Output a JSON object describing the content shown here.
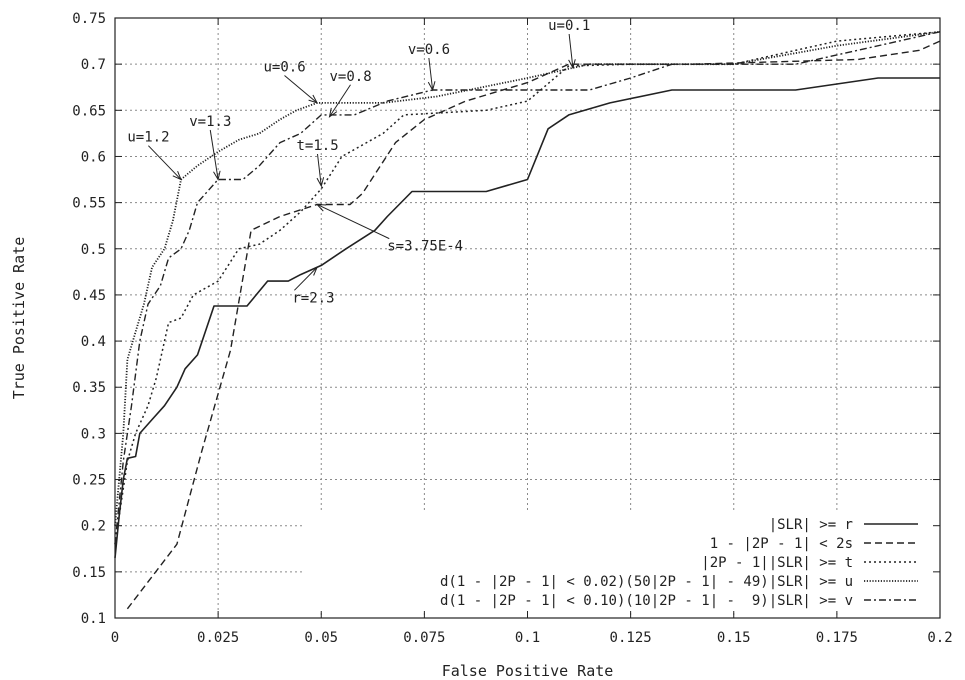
{
  "chart_data": {
    "type": "line",
    "xlabel": "False Positive Rate",
    "ylabel": "True Positive Rate",
    "xlim": [
      0,
      0.2
    ],
    "ylim": [
      0.1,
      0.75
    ],
    "grid": true,
    "x_ticks": [
      "0",
      "0.025",
      "0.05",
      "0.075",
      "0.1",
      "0.125",
      "0.15",
      "0.175",
      "0.2"
    ],
    "y_ticks": [
      "0.1",
      "0.15",
      "0.2",
      "0.25",
      "0.3",
      "0.35",
      "0.4",
      "0.45",
      "0.5",
      "0.55",
      "0.6",
      "0.65",
      "0.7",
      "0.75"
    ],
    "legend_position": "bottom-right",
    "series": [
      {
        "name": "|SLR| >= r",
        "style": "solid",
        "points": [
          [
            0,
            0.165
          ],
          [
            0.001,
            0.21
          ],
          [
            0.002,
            0.25
          ],
          [
            0.003,
            0.273
          ],
          [
            0.005,
            0.275
          ],
          [
            0.006,
            0.3
          ],
          [
            0.009,
            0.315
          ],
          [
            0.012,
            0.33
          ],
          [
            0.015,
            0.35
          ],
          [
            0.017,
            0.37
          ],
          [
            0.02,
            0.385
          ],
          [
            0.024,
            0.438
          ],
          [
            0.032,
            0.438
          ],
          [
            0.037,
            0.465
          ],
          [
            0.042,
            0.465
          ],
          [
            0.045,
            0.472
          ],
          [
            0.05,
            0.482
          ],
          [
            0.056,
            0.5
          ],
          [
            0.063,
            0.52
          ],
          [
            0.066,
            0.535
          ],
          [
            0.072,
            0.562
          ],
          [
            0.09,
            0.562
          ],
          [
            0.1,
            0.575
          ],
          [
            0.105,
            0.63
          ],
          [
            0.11,
            0.645
          ],
          [
            0.12,
            0.658
          ],
          [
            0.135,
            0.672
          ],
          [
            0.165,
            0.672
          ],
          [
            0.185,
            0.685
          ],
          [
            0.2,
            0.685
          ]
        ]
      },
      {
        "name": "1 - |2P - 1| < 2s",
        "style": "dashed",
        "points": [
          [
            0.003,
            0.11
          ],
          [
            0.015,
            0.18
          ],
          [
            0.021,
            0.28
          ],
          [
            0.028,
            0.39
          ],
          [
            0.033,
            0.52
          ],
          [
            0.04,
            0.535
          ],
          [
            0.049,
            0.548
          ],
          [
            0.057,
            0.548
          ],
          [
            0.06,
            0.56
          ],
          [
            0.068,
            0.615
          ],
          [
            0.075,
            0.64
          ],
          [
            0.085,
            0.66
          ],
          [
            0.1,
            0.68
          ],
          [
            0.11,
            0.7
          ],
          [
            0.125,
            0.7
          ],
          [
            0.14,
            0.7
          ],
          [
            0.18,
            0.705
          ],
          [
            0.195,
            0.715
          ],
          [
            0.2,
            0.725
          ]
        ]
      },
      {
        "name": "|2P - 1||SLR| >= t",
        "style": "dotted",
        "points": [
          [
            0,
            0.18
          ],
          [
            0.003,
            0.27
          ],
          [
            0.005,
            0.3
          ],
          [
            0.008,
            0.33
          ],
          [
            0.01,
            0.36
          ],
          [
            0.013,
            0.42
          ],
          [
            0.016,
            0.425
          ],
          [
            0.019,
            0.45
          ],
          [
            0.025,
            0.465
          ],
          [
            0.03,
            0.5
          ],
          [
            0.035,
            0.505
          ],
          [
            0.04,
            0.52
          ],
          [
            0.045,
            0.54
          ],
          [
            0.05,
            0.565
          ],
          [
            0.055,
            0.6
          ],
          [
            0.065,
            0.625
          ],
          [
            0.07,
            0.645
          ],
          [
            0.09,
            0.65
          ],
          [
            0.1,
            0.66
          ],
          [
            0.11,
            0.698
          ],
          [
            0.125,
            0.7
          ],
          [
            0.15,
            0.7
          ],
          [
            0.175,
            0.725
          ],
          [
            0.2,
            0.735
          ]
        ]
      },
      {
        "name": "d(1 - |2P - 1| < 0.02)(50|2P - 1| - 49)|SLR| >= u",
        "style": "fine-dotted",
        "points": [
          [
            0,
            0.2
          ],
          [
            0.002,
            0.3
          ],
          [
            0.003,
            0.38
          ],
          [
            0.005,
            0.41
          ],
          [
            0.007,
            0.44
          ],
          [
            0.009,
            0.48
          ],
          [
            0.012,
            0.5
          ],
          [
            0.014,
            0.53
          ],
          [
            0.016,
            0.575
          ],
          [
            0.02,
            0.59
          ],
          [
            0.025,
            0.605
          ],
          [
            0.03,
            0.618
          ],
          [
            0.035,
            0.625
          ],
          [
            0.04,
            0.64
          ],
          [
            0.044,
            0.65
          ],
          [
            0.049,
            0.658
          ],
          [
            0.065,
            0.658
          ],
          [
            0.078,
            0.665
          ],
          [
            0.1,
            0.685
          ],
          [
            0.115,
            0.7
          ],
          [
            0.15,
            0.7
          ],
          [
            0.175,
            0.72
          ],
          [
            0.2,
            0.735
          ]
        ]
      },
      {
        "name": "d(1 - |2P - 1| < 0.10)(10|2P - 1| -  9)|SLR| >= v",
        "style": "dash-dot",
        "points": [
          [
            0,
            0.18
          ],
          [
            0.002,
            0.27
          ],
          [
            0.004,
            0.33
          ],
          [
            0.006,
            0.4
          ],
          [
            0.008,
            0.44
          ],
          [
            0.011,
            0.46
          ],
          [
            0.013,
            0.49
          ],
          [
            0.016,
            0.5
          ],
          [
            0.018,
            0.52
          ],
          [
            0.02,
            0.55
          ],
          [
            0.025,
            0.575
          ],
          [
            0.031,
            0.575
          ],
          [
            0.035,
            0.59
          ],
          [
            0.04,
            0.615
          ],
          [
            0.045,
            0.625
          ],
          [
            0.05,
            0.645
          ],
          [
            0.058,
            0.645
          ],
          [
            0.066,
            0.66
          ],
          [
            0.077,
            0.672
          ],
          [
            0.105,
            0.672
          ],
          [
            0.115,
            0.672
          ],
          [
            0.125,
            0.685
          ],
          [
            0.135,
            0.7
          ],
          [
            0.165,
            0.7
          ],
          [
            0.19,
            0.725
          ],
          [
            0.2,
            0.735
          ]
        ]
      }
    ],
    "annotations": [
      {
        "text": "u=0.1",
        "x": 0.111,
        "y": 0.696,
        "label_x": 0.105,
        "label_y": 0.737
      },
      {
        "text": "v=0.6",
        "x": 0.077,
        "y": 0.672,
        "label_x": 0.071,
        "label_y": 0.711
      },
      {
        "text": "u=0.6",
        "x": 0.049,
        "y": 0.658,
        "label_x": 0.036,
        "label_y": 0.692
      },
      {
        "text": "v=0.8",
        "x": 0.052,
        "y": 0.643,
        "label_x": 0.052,
        "label_y": 0.682
      },
      {
        "text": "v=1.3",
        "x": 0.025,
        "y": 0.575,
        "label_x": 0.018,
        "label_y": 0.633
      },
      {
        "text": "u=1.2",
        "x": 0.016,
        "y": 0.575,
        "label_x": 0.003,
        "label_y": 0.616
      },
      {
        "text": "t=1.5",
        "x": 0.05,
        "y": 0.568,
        "label_x": 0.044,
        "label_y": 0.607
      },
      {
        "text": "s=3.75E-4",
        "x": 0.049,
        "y": 0.548,
        "label_x": 0.066,
        "label_y": 0.498
      },
      {
        "text": "r=2.3",
        "x": 0.049,
        "y": 0.48,
        "label_x": 0.043,
        "label_y": 0.442
      }
    ]
  }
}
